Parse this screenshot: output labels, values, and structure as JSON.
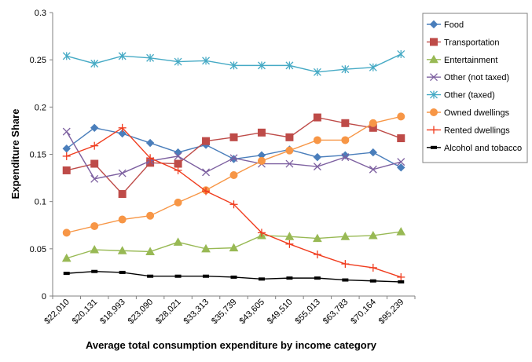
{
  "chart_data": {
    "type": "line",
    "xlabel": "Average total consumption expenditure by income category",
    "ylabel": "Expenditure Share",
    "categories": [
      "$22,010",
      "$20,131",
      "$18,993",
      "$23,090",
      "$28,021",
      "$33,313",
      "$35,739",
      "$43,605",
      "$49,510",
      "$55,013",
      "$63,783",
      "$70,164",
      "$95,239"
    ],
    "ylim": [
      0,
      0.3
    ],
    "yticks": [
      0,
      0.05,
      0.1,
      0.15,
      0.2,
      0.25,
      0.3
    ],
    "ytick_labels": [
      "0",
      "0.05",
      "0.1",
      "0.15",
      "0.2",
      "0.25",
      "0.3"
    ],
    "grid": false,
    "legend_position": "right",
    "series": [
      {
        "name": "Food",
        "color": "#4a7ebb",
        "marker": "diamond",
        "values": [
          0.156,
          0.178,
          0.172,
          0.162,
          0.152,
          0.16,
          0.145,
          0.149,
          0.155,
          0.147,
          0.149,
          0.152,
          0.136
        ]
      },
      {
        "name": "Transportation",
        "color": "#be4b48",
        "marker": "square",
        "values": [
          0.133,
          0.14,
          0.108,
          0.141,
          0.14,
          0.164,
          0.168,
          0.173,
          0.168,
          0.189,
          0.183,
          0.178,
          0.167
        ]
      },
      {
        "name": "Entertainment",
        "color": "#98b954",
        "marker": "triangle",
        "values": [
          0.04,
          0.049,
          0.048,
          0.047,
          0.057,
          0.05,
          0.051,
          0.064,
          0.063,
          0.061,
          0.063,
          0.064,
          0.068
        ]
      },
      {
        "name": "Other (not taxed)",
        "color": "#7d60a0",
        "marker": "x",
        "values": [
          0.174,
          0.124,
          0.13,
          0.143,
          0.148,
          0.131,
          0.146,
          0.14,
          0.14,
          0.137,
          0.147,
          0.134,
          0.142
        ]
      },
      {
        "name": "Other (taxed)",
        "color": "#46aac5",
        "marker": "star",
        "values": [
          0.254,
          0.246,
          0.254,
          0.252,
          0.248,
          0.249,
          0.244,
          0.244,
          0.244,
          0.237,
          0.24,
          0.242,
          0.256
        ]
      },
      {
        "name": "Owned dwellings",
        "color": "#f79646",
        "marker": "circle",
        "values": [
          0.067,
          0.074,
          0.081,
          0.085,
          0.099,
          0.112,
          0.128,
          0.143,
          0.154,
          0.165,
          0.165,
          0.183,
          0.19
        ]
      },
      {
        "name": "Rented dwellings",
        "color": "#f03c1e",
        "marker": "plus",
        "values": [
          0.148,
          0.159,
          0.178,
          0.146,
          0.133,
          0.111,
          0.097,
          0.067,
          0.055,
          0.044,
          0.034,
          0.03,
          0.02
        ]
      },
      {
        "name": "Alcohol and tobacco",
        "color": "#000000",
        "marker": "dash",
        "values": [
          0.024,
          0.026,
          0.025,
          0.021,
          0.021,
          0.021,
          0.02,
          0.018,
          0.019,
          0.019,
          0.017,
          0.016,
          0.015
        ]
      }
    ]
  }
}
